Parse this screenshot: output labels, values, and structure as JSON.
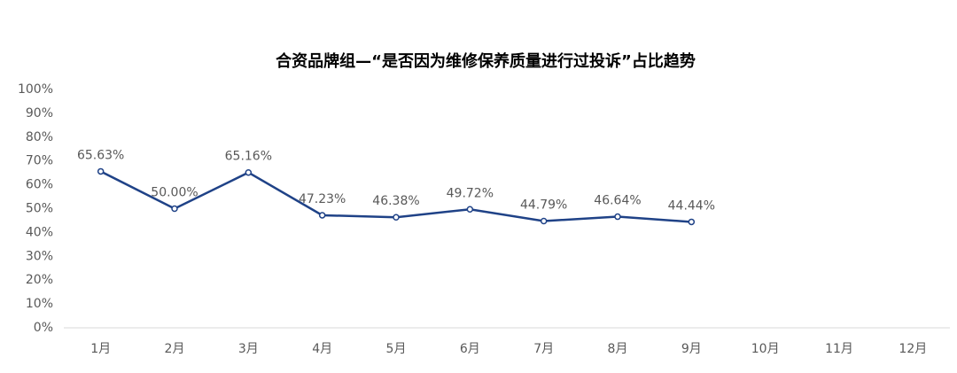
{
  "chart_data": {
    "type": "line",
    "title": "合资品牌组—“是否因为维修保养质量进行过投诉”占比趋势",
    "categories": [
      "1月",
      "2月",
      "3月",
      "4月",
      "5月",
      "6月",
      "7月",
      "8月",
      "9月",
      "10月",
      "11月",
      "12月"
    ],
    "values": [
      65.63,
      50.0,
      65.16,
      47.23,
      46.38,
      49.72,
      44.79,
      46.64,
      44.44,
      null,
      null,
      null
    ],
    "value_labels": [
      "65.63%",
      "50.00%",
      "65.16%",
      "47.23%",
      "46.38%",
      "49.72%",
      "44.79%",
      "46.64%",
      "44.44%",
      null,
      null,
      null
    ],
    "color": "#1f4287",
    "ylim": [
      0,
      100
    ],
    "yticks": [
      {
        "value": 0,
        "label": "0%"
      },
      {
        "value": 10,
        "label": "10%"
      },
      {
        "value": 20,
        "label": "20%"
      },
      {
        "value": 30,
        "label": "30%"
      },
      {
        "value": 40,
        "label": "40%"
      },
      {
        "value": 50,
        "label": "50%"
      },
      {
        "value": 60,
        "label": "60%"
      },
      {
        "value": 70,
        "label": "70%"
      },
      {
        "value": 80,
        "label": "80%"
      },
      {
        "value": 90,
        "label": "90%"
      },
      {
        "value": 100,
        "label": "100%"
      }
    ],
    "grid": false
  }
}
